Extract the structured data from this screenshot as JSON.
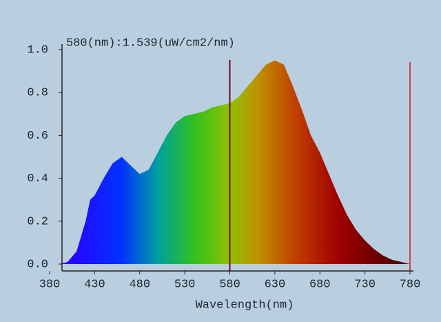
{
  "chart_data": {
    "type": "spectrum",
    "annotation": "580(nm):1.539(uW/cm2/nm)",
    "x_label": "Wavelength(nm)",
    "cursor": 580,
    "x": [
      380,
      390,
      400,
      410,
      420,
      425,
      430,
      440,
      450,
      460,
      470,
      480,
      490,
      500,
      510,
      520,
      530,
      540,
      550,
      560,
      570,
      580,
      590,
      600,
      610,
      620,
      630,
      640,
      650,
      660,
      670,
      680,
      690,
      700,
      710,
      720,
      730,
      740,
      750,
      760,
      770,
      780
    ],
    "values": [
      0,
      0,
      0.01,
      0.06,
      0.2,
      0.3,
      0.32,
      0.4,
      0.47,
      0.5,
      0.46,
      0.42,
      0.44,
      0.52,
      0.6,
      0.66,
      0.69,
      0.7,
      0.71,
      0.73,
      0.74,
      0.75,
      0.78,
      0.83,
      0.88,
      0.93,
      0.95,
      0.93,
      0.83,
      0.72,
      0.6,
      0.52,
      0.42,
      0.32,
      0.23,
      0.16,
      0.11,
      0.07,
      0.04,
      0.02,
      0.01,
      0
    ],
    "xlim": [
      380,
      780
    ],
    "ylim": [
      0,
      1
    ],
    "xticks": [
      380,
      430,
      480,
      530,
      580,
      630,
      680,
      730,
      780
    ],
    "yticks": [
      {
        "value": 0,
        "label": "0.0"
      },
      0.2,
      0.4,
      0.6,
      0.8,
      {
        "value": 1,
        "label": "1.0"
      }
    ]
  }
}
